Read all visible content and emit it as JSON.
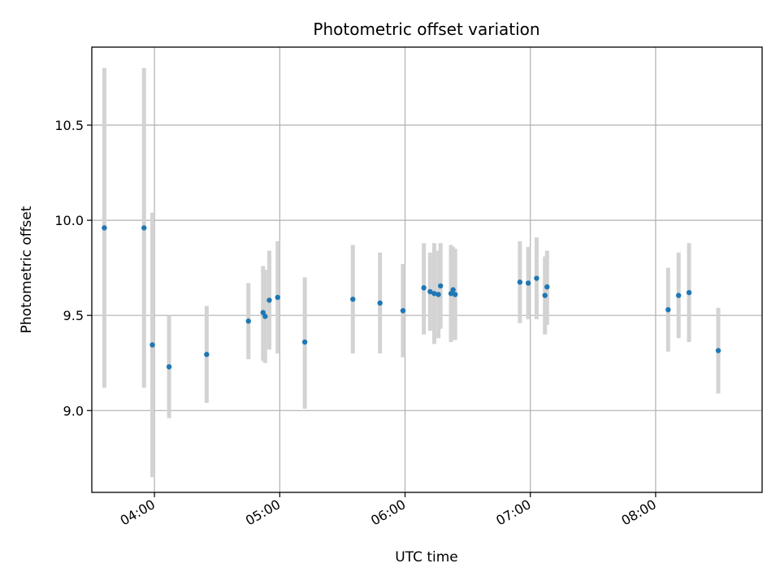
{
  "chart_data": {
    "type": "scatter",
    "title": "Photometric offset variation",
    "xlabel": "UTC time",
    "ylabel": "Photometric offset",
    "xlim": [
      "03:30",
      "08:51"
    ],
    "ylim": [
      8.57,
      10.91
    ],
    "grid": true,
    "x_ticks": [
      "04:00",
      "05:00",
      "06:00",
      "07:00",
      "08:00"
    ],
    "y_ticks": [
      "9.0",
      "9.5",
      "10.0",
      "10.5"
    ],
    "colors": {
      "point": "#1f77b4",
      "errorbar": "#d3d3d3",
      "grid": "#b0b0b0"
    },
    "points": [
      {
        "x": "03:36",
        "y": 9.96,
        "ylow": 9.12,
        "yhigh": 10.8
      },
      {
        "x": "03:55",
        "y": 9.96,
        "ylow": 9.12,
        "yhigh": 10.8
      },
      {
        "x": "03:59",
        "y": 9.345,
        "ylow": 8.65,
        "yhigh": 10.04
      },
      {
        "x": "04:07",
        "y": 9.23,
        "ylow": 8.96,
        "yhigh": 9.5
      },
      {
        "x": "04:25",
        "y": 9.295,
        "ylow": 9.04,
        "yhigh": 9.55
      },
      {
        "x": "04:45",
        "y": 9.47,
        "ylow": 9.27,
        "yhigh": 9.67
      },
      {
        "x": "04:52",
        "y": 9.515,
        "ylow": 9.26,
        "yhigh": 9.76
      },
      {
        "x": "04:53",
        "y": 9.495,
        "ylow": 9.25,
        "yhigh": 9.74
      },
      {
        "x": "04:55",
        "y": 9.58,
        "ylow": 9.32,
        "yhigh": 9.84
      },
      {
        "x": "04:59",
        "y": 9.595,
        "ylow": 9.3,
        "yhigh": 9.89
      },
      {
        "x": "05:12",
        "y": 9.36,
        "ylow": 9.01,
        "yhigh": 9.7
      },
      {
        "x": "05:35",
        "y": 9.585,
        "ylow": 9.3,
        "yhigh": 9.87
      },
      {
        "x": "05:48",
        "y": 9.565,
        "ylow": 9.3,
        "yhigh": 9.83
      },
      {
        "x": "05:59",
        "y": 9.525,
        "ylow": 9.28,
        "yhigh": 9.77
      },
      {
        "x": "06:09",
        "y": 9.645,
        "ylow": 9.4,
        "yhigh": 9.88
      },
      {
        "x": "06:12",
        "y": 9.625,
        "ylow": 9.42,
        "yhigh": 9.83
      },
      {
        "x": "06:14",
        "y": 9.615,
        "ylow": 9.35,
        "yhigh": 9.88
      },
      {
        "x": "06:16",
        "y": 9.61,
        "ylow": 9.38,
        "yhigh": 9.84
      },
      {
        "x": "06:17",
        "y": 9.655,
        "ylow": 9.43,
        "yhigh": 9.88
      },
      {
        "x": "06:22",
        "y": 9.615,
        "ylow": 9.36,
        "yhigh": 9.87
      },
      {
        "x": "06:23",
        "y": 9.635,
        "ylow": 9.4,
        "yhigh": 9.86
      },
      {
        "x": "06:24",
        "y": 9.61,
        "ylow": 9.37,
        "yhigh": 9.85
      },
      {
        "x": "06:55",
        "y": 9.675,
        "ylow": 9.46,
        "yhigh": 9.89
      },
      {
        "x": "06:59",
        "y": 9.67,
        "ylow": 9.48,
        "yhigh": 9.86
      },
      {
        "x": "07:03",
        "y": 9.695,
        "ylow": 9.48,
        "yhigh": 9.91
      },
      {
        "x": "07:07",
        "y": 9.605,
        "ylow": 9.4,
        "yhigh": 9.81
      },
      {
        "x": "07:08",
        "y": 9.65,
        "ylow": 9.45,
        "yhigh": 9.84
      },
      {
        "x": "08:06",
        "y": 9.53,
        "ylow": 9.31,
        "yhigh": 9.75
      },
      {
        "x": "08:11",
        "y": 9.605,
        "ylow": 9.38,
        "yhigh": 9.83
      },
      {
        "x": "08:16",
        "y": 9.62,
        "ylow": 9.36,
        "yhigh": 9.88
      },
      {
        "x": "08:30",
        "y": 9.315,
        "ylow": 9.09,
        "yhigh": 9.54
      }
    ]
  }
}
